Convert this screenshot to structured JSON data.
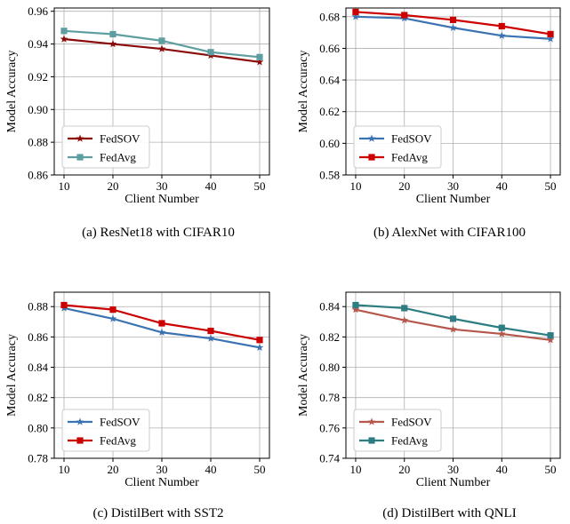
{
  "chart_data": [
    {
      "type": "line",
      "caption": "(a)  ResNet18 with CIFAR10",
      "xlabel": "Client Number",
      "ylabel": "Model Accuracy",
      "x": [
        10,
        20,
        30,
        40,
        50
      ],
      "xticks": [
        "10",
        "20",
        "30",
        "40",
        "50"
      ],
      "xlim": [
        8.0,
        52.0
      ],
      "ylim": [
        0.86,
        0.962
      ],
      "yticks": [
        0.86,
        0.88,
        0.9,
        0.92,
        0.94,
        0.96
      ],
      "ytick_labels": [
        "0.86",
        "0.88",
        "0.90",
        "0.92",
        "0.94",
        "0.96"
      ],
      "grid": true,
      "legend_position": "lower-left",
      "series": [
        {
          "name": "FedSOV",
          "values": [
            0.943,
            0.94,
            0.937,
            0.933,
            0.929
          ],
          "color": "#8b0a0a",
          "marker": "star"
        },
        {
          "name": "FedAvg",
          "values": [
            0.948,
            0.946,
            0.942,
            0.935,
            0.932
          ],
          "color": "#5f9ea0",
          "marker": "square"
        }
      ]
    },
    {
      "type": "line",
      "caption": "(b)  AlexNet with CIFAR100",
      "xlabel": "Client Number",
      "ylabel": "Model Accuracy",
      "x": [
        10,
        20,
        30,
        40,
        50
      ],
      "xticks": [
        "10",
        "20",
        "30",
        "40",
        "50"
      ],
      "xlim": [
        8.0,
        52.0
      ],
      "ylim": [
        0.58,
        0.6855
      ],
      "yticks": [
        0.58,
        0.6,
        0.62,
        0.64,
        0.66,
        0.68
      ],
      "ytick_labels": [
        "0.58",
        "0.60",
        "0.62",
        "0.64",
        "0.66",
        "0.68"
      ],
      "grid": true,
      "legend_position": "lower-left",
      "series": [
        {
          "name": "FedSOV",
          "values": [
            0.68,
            0.679,
            0.673,
            0.668,
            0.666
          ],
          "color": "#3b73b2",
          "marker": "star"
        },
        {
          "name": "FedAvg",
          "values": [
            0.683,
            0.681,
            0.678,
            0.674,
            0.669
          ],
          "color": "#cc0000",
          "marker": "square"
        }
      ]
    },
    {
      "type": "line",
      "caption": "(c)  DistilBert with SST2",
      "xlabel": "Client Number",
      "ylabel": "Model Accuracy",
      "x": [
        10,
        20,
        30,
        40,
        50
      ],
      "xticks": [
        "10",
        "20",
        "30",
        "40",
        "50"
      ],
      "xlim": [
        8.0,
        52.0
      ],
      "ylim": [
        0.78,
        0.8895
      ],
      "yticks": [
        0.78,
        0.8,
        0.82,
        0.84,
        0.86,
        0.88
      ],
      "ytick_labels": [
        "0.78",
        "0.80",
        "0.82",
        "0.84",
        "0.86",
        "0.88"
      ],
      "grid": true,
      "legend_position": "lower-left",
      "series": [
        {
          "name": "FedSOV",
          "values": [
            0.879,
            0.872,
            0.863,
            0.859,
            0.853
          ],
          "color": "#3b73b2",
          "marker": "star"
        },
        {
          "name": "FedAvg",
          "values": [
            0.881,
            0.878,
            0.869,
            0.864,
            0.858
          ],
          "color": "#cc0000",
          "marker": "square"
        }
      ]
    },
    {
      "type": "line",
      "caption": "(d)  DistilBert with QNLI",
      "xlabel": "Client Number",
      "ylabel": "Model Accuracy",
      "x": [
        10,
        20,
        30,
        40,
        50
      ],
      "xticks": [
        "10",
        "20",
        "30",
        "40",
        "50"
      ],
      "xlim": [
        8.0,
        52.0
      ],
      "ylim": [
        0.74,
        0.8495
      ],
      "yticks": [
        0.74,
        0.76,
        0.78,
        0.8,
        0.82,
        0.84
      ],
      "ytick_labels": [
        "0.74",
        "0.76",
        "0.78",
        "0.80",
        "0.82",
        "0.84"
      ],
      "grid": true,
      "legend_position": "lower-left",
      "series": [
        {
          "name": "FedSOV",
          "values": [
            0.838,
            0.831,
            0.825,
            0.822,
            0.818
          ],
          "color": "#b5574b",
          "marker": "star"
        },
        {
          "name": "FedAvg",
          "values": [
            0.841,
            0.839,
            0.832,
            0.826,
            0.821
          ],
          "color": "#2e7d82",
          "marker": "square"
        }
      ]
    }
  ]
}
